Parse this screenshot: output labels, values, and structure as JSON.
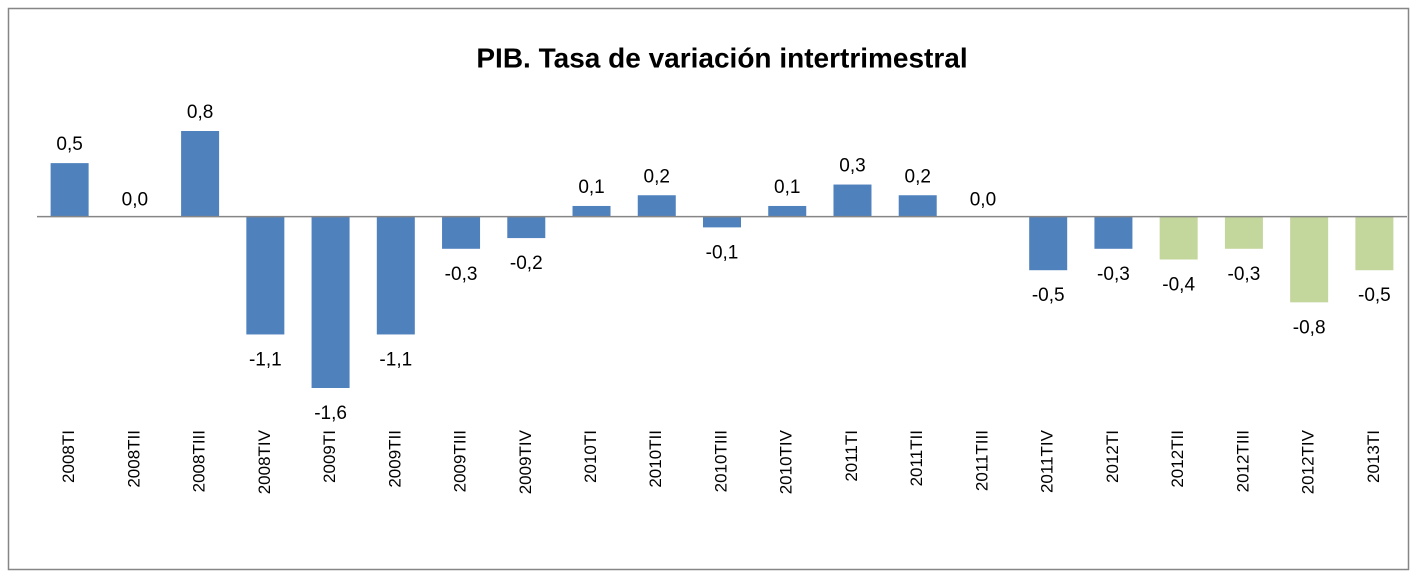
{
  "chart_data": {
    "type": "bar",
    "title": "PIB. Tasa de variación intertrimestral",
    "categories": [
      "2008TI",
      "2008TII",
      "2008TIII",
      "2008TIV",
      "2009TI",
      "2009TII",
      "2009TIII",
      "2009TIV",
      "2010TI",
      "2010TII",
      "2010TIII",
      "2010TIV",
      "2011TI",
      "2011TII",
      "2011TIII",
      "2011TIV",
      "2012TI",
      "2012TII",
      "2012TIII",
      "2012TIV",
      "2013TI"
    ],
    "values": [
      0.5,
      0.0,
      0.8,
      -1.1,
      -1.6,
      -1.1,
      -0.3,
      -0.2,
      0.1,
      0.2,
      -0.1,
      0.1,
      0.3,
      0.2,
      0.0,
      -0.5,
      -0.3,
      -0.4,
      -0.3,
      -0.8,
      -0.5
    ],
    "value_labels": [
      "0,5",
      "0,0",
      "0,8",
      "-1,1",
      "-1,6",
      "-1,1",
      "-0,3",
      "-0,2",
      "0,1",
      "0,2",
      "-0,1",
      "0,1",
      "0,3",
      "0,2",
      "0,0",
      "-0,5",
      "-0,3",
      "-0,4",
      "-0,3",
      "-0,8",
      "-0,5"
    ],
    "colors": [
      "#4f81bd",
      "#4f81bd",
      "#4f81bd",
      "#4f81bd",
      "#4f81bd",
      "#4f81bd",
      "#4f81bd",
      "#4f81bd",
      "#4f81bd",
      "#4f81bd",
      "#4f81bd",
      "#4f81bd",
      "#4f81bd",
      "#4f81bd",
      "#4f81bd",
      "#4f81bd",
      "#4f81bd",
      "#c3d69b",
      "#c3d69b",
      "#c3d69b",
      "#c3d69b"
    ]
  }
}
